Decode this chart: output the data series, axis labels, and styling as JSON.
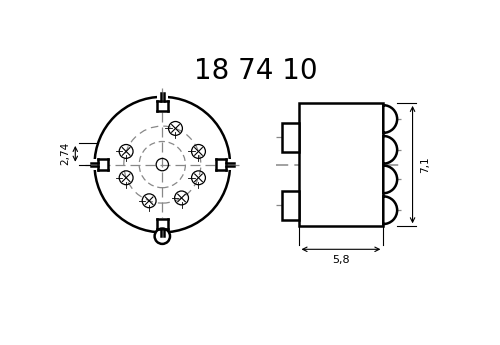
{
  "title": "18 74 10",
  "title_fontsize": 20,
  "bg_color": "#ffffff",
  "line_color": "#000000",
  "dash_color": "#888888",
  "dim_274": "2,74",
  "dim_71": "7,1",
  "dim_58": "5,8",
  "lw_main": 1.8,
  "lw_thin": 0.9,
  "lw_dim": 0.8
}
